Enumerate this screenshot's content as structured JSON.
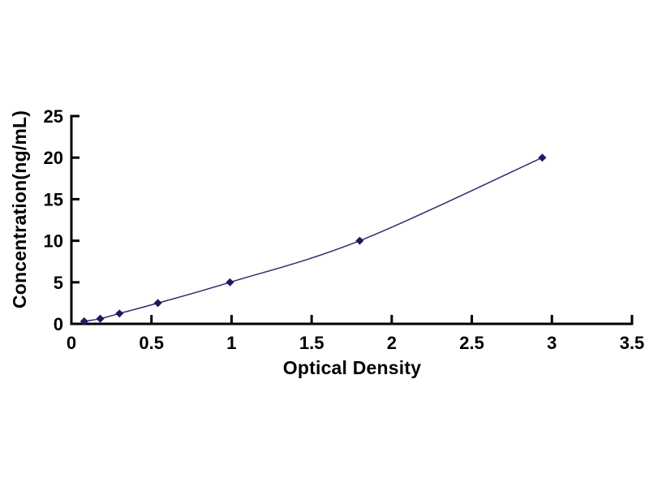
{
  "figure": {
    "background": "#ffffff"
  },
  "chart_data": {
    "type": "line",
    "title": "",
    "xlabel": "Optical Density",
    "ylabel": "Concentration(ng/mL)",
    "xlim": [
      0,
      3.5
    ],
    "ylim": [
      0,
      25
    ],
    "grid": false,
    "legend": "none",
    "axis_color": "#000000",
    "tick_label_color": "#000000",
    "x_ticks": {
      "values": [
        0,
        0.5,
        1,
        1.5,
        2,
        2.5,
        3,
        3.5
      ],
      "labels": [
        "0",
        "0.5",
        "1",
        "1.5",
        "2",
        "2.5",
        "3",
        "3.5"
      ]
    },
    "y_ticks": {
      "values": [
        0,
        5,
        10,
        15,
        20,
        25
      ],
      "labels": [
        "0",
        "5",
        "10",
        "15",
        "20",
        "25"
      ]
    },
    "series": [
      {
        "name": "standard-curve",
        "marker": "diamond",
        "line_color": "#2c2c6e",
        "marker_color": "#1b1b5e",
        "points": [
          {
            "x": 0.08,
            "y": 0.31
          },
          {
            "x": 0.18,
            "y": 0.62
          },
          {
            "x": 0.3,
            "y": 1.25
          },
          {
            "x": 0.54,
            "y": 2.5
          },
          {
            "x": 0.99,
            "y": 5
          },
          {
            "x": 1.8,
            "y": 10
          },
          {
            "x": 2.94,
            "y": 20
          }
        ]
      }
    ]
  }
}
